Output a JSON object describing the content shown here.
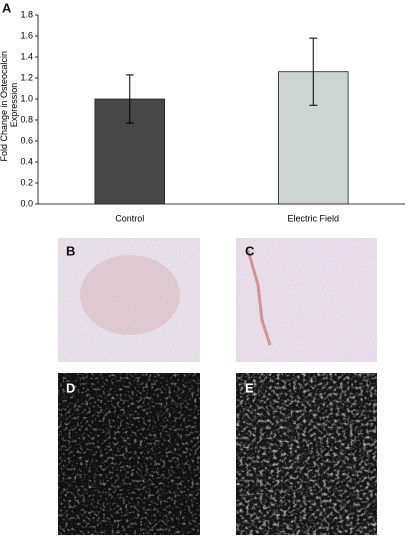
{
  "chart_data": {
    "type": "bar",
    "panel_label": "A",
    "ylabel": [
      "Fold Change in Osteocalcin",
      "Expression"
    ],
    "categories": [
      "Control",
      "Electric Field"
    ],
    "values": [
      1.0,
      1.26
    ],
    "errors": [
      0.23,
      0.32
    ],
    "colors": [
      "#474747",
      "#cdd4d1"
    ],
    "ylim": [
      0,
      1.8
    ],
    "yticks": [
      {
        "value": 0,
        "label": "0.0"
      },
      0.2,
      0.4,
      0.6,
      0.8,
      {
        "value": 1,
        "label": "1.0"
      },
      1.2,
      1.4,
      1.6,
      1.8
    ]
  },
  "panels": [
    {
      "label": "B"
    },
    {
      "label": "C"
    },
    {
      "label": "D"
    },
    {
      "label": "E"
    }
  ]
}
